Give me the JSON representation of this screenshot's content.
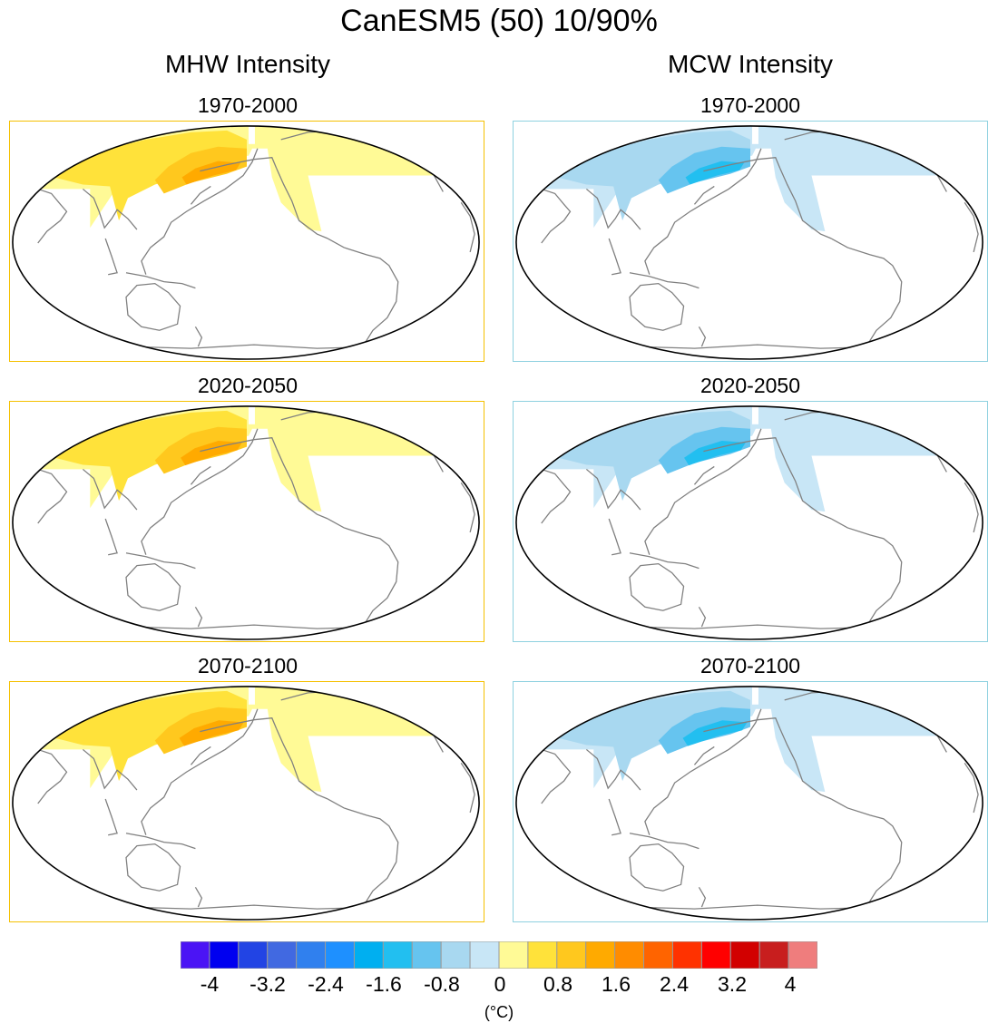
{
  "figure": {
    "title": "CanESM5 (50) 10/90%",
    "columns": [
      {
        "heading": "MHW Intensity",
        "kind": "warm",
        "frame_color": "#f5c000"
      },
      {
        "heading": "MCW Intensity",
        "kind": "cold",
        "frame_color": "#8ed1e0"
      }
    ],
    "periods": [
      "1970-2000",
      "2020-2050",
      "2070-2100"
    ]
  },
  "chart_data": {
    "type": "map",
    "variable": "Marine heat/cold wave intensity",
    "colorbar": {
      "units": "(°C)",
      "tick_labels": [
        "-4",
        "-3.2",
        "-2.4",
        "-1.6",
        "-0.8",
        "0",
        "0.8",
        "1.6",
        "2.4",
        "3.2",
        "4"
      ],
      "tick_values": [
        -4,
        -3.2,
        -2.4,
        -1.6,
        -0.8,
        0,
        0.8,
        1.6,
        2.4,
        3.2,
        4
      ],
      "colors": [
        "#4b14f5",
        "#0000f0",
        "#2244e4",
        "#4169e1",
        "#3080ee",
        "#1e90ff",
        "#00aff0",
        "#22bff0",
        "#66c4ef",
        "#a8d8f0",
        "#c8e6f6",
        "#fffa96",
        "#ffe23a",
        "#ffc81e",
        "#ffaa00",
        "#ff8c00",
        "#ff6400",
        "#ff3200",
        "#ff0000",
        "#d20000",
        "#c81e1e",
        "#ef7d7d"
      ]
    }
  }
}
